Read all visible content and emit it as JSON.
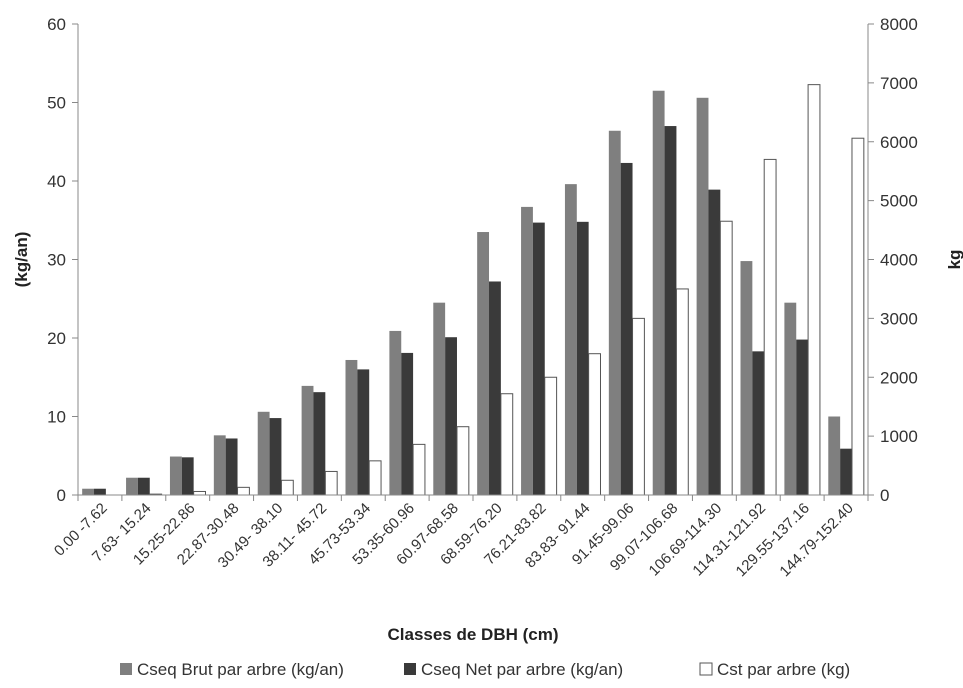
{
  "chart_data": {
    "type": "bar",
    "xlabel": "Classes de DBH (cm)",
    "ylabel_left": "(kg/an)",
    "ylabel_right": "kg",
    "ylim_left": [
      0,
      60
    ],
    "ylim_right": [
      0,
      8000
    ],
    "yticks_left": [
      0,
      10,
      20,
      30,
      40,
      50,
      60
    ],
    "yticks_right": [
      0,
      1000,
      2000,
      3000,
      4000,
      5000,
      6000,
      7000,
      8000
    ],
    "grid": false,
    "legend_position": "bottom",
    "categories": [
      "0.00 -7.62",
      "7.63- 15.24",
      "15.25-22.86",
      "22.87-30.48",
      "30.49- 38.10",
      "38.11- 45.72",
      "45.73-53.34",
      "53.35-60.96",
      "60.97-68.58",
      "68.59-76.20",
      "76.21-83.82",
      "83.83- 91.44",
      "91.45-99.06",
      "99.07-106.68",
      "106.69-114.30",
      "114.31-121.92",
      "129.55-137.16",
      "144.79-152.40"
    ],
    "series": [
      {
        "name": "Cseq Brut par arbre (kg/an)",
        "axis": "left",
        "color": "#7f7f7f",
        "values": [
          0.8,
          2.2,
          4.9,
          7.6,
          10.6,
          13.9,
          17.2,
          20.9,
          24.5,
          33.5,
          36.7,
          39.6,
          46.4,
          51.5,
          50.6,
          29.8,
          24.5,
          10.0
        ]
      },
      {
        "name": "Cseq Net par arbre (kg/an)",
        "axis": "left",
        "color": "#3a3a3a",
        "values": [
          0.8,
          2.2,
          4.8,
          7.2,
          9.8,
          13.1,
          16.0,
          18.1,
          20.1,
          27.2,
          34.7,
          34.8,
          42.3,
          47.0,
          38.9,
          18.3,
          19.8,
          5.9
        ]
      },
      {
        "name": "Cst par arbre (kg)",
        "axis": "right",
        "color": "#ffffff",
        "values": [
          0,
          15,
          60,
          130,
          250,
          400,
          580,
          860,
          1160,
          1720,
          2000,
          2400,
          3000,
          3500,
          4650,
          5700,
          6970,
          6060
        ]
      }
    ]
  }
}
